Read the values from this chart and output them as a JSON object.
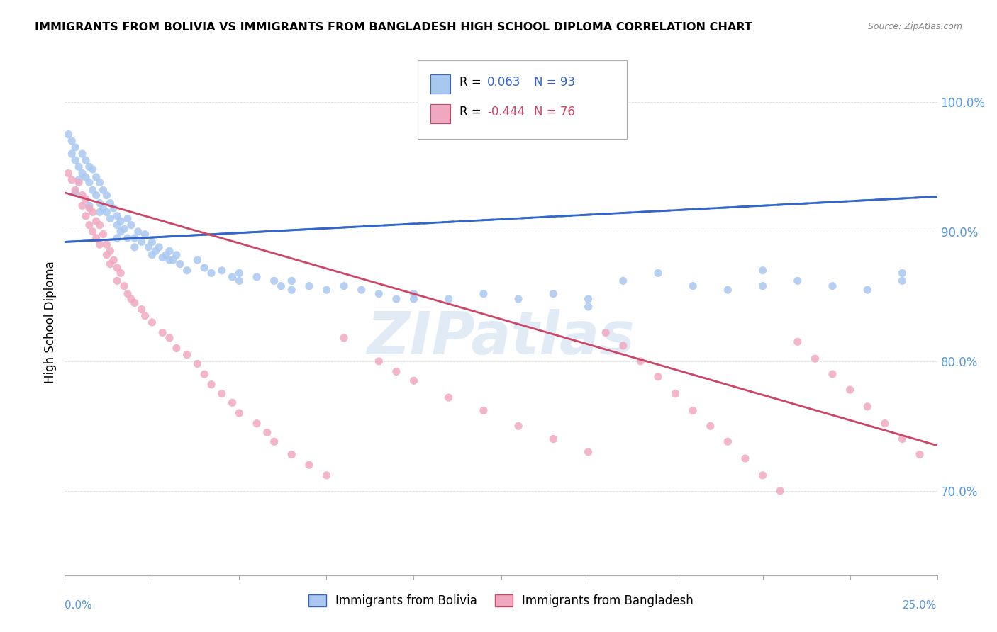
{
  "title": "IMMIGRANTS FROM BOLIVIA VS IMMIGRANTS FROM BANGLADESH HIGH SCHOOL DIPLOMA CORRELATION CHART",
  "source": "Source: ZipAtlas.com",
  "ylabel": "High School Diploma",
  "xmin": 0.0,
  "xmax": 0.25,
  "ymin": 0.635,
  "ymax": 1.025,
  "yticks": [
    0.7,
    0.8,
    0.9,
    1.0
  ],
  "ytick_labels": [
    "70.0%",
    "80.0%",
    "90.0%",
    "100.0%"
  ],
  "bolivia_color": "#a8c8f0",
  "bangladesh_color": "#f0a8c0",
  "bolivia_line_color": "#3366cc",
  "bangladesh_line_color": "#cc4466",
  "bolivia_R": 0.063,
  "bolivia_N": 93,
  "bangladesh_R": -0.444,
  "bangladesh_N": 76,
  "bolivia_label": "Immigrants from Bolivia",
  "bangladesh_label": "Immigrants from Bangladesh",
  "watermark": "ZIPatlas",
  "bolivia_scatter_x": [
    0.001,
    0.002,
    0.002,
    0.003,
    0.003,
    0.004,
    0.004,
    0.005,
    0.005,
    0.006,
    0.006,
    0.007,
    0.007,
    0.008,
    0.008,
    0.009,
    0.009,
    0.01,
    0.01,
    0.011,
    0.011,
    0.012,
    0.012,
    0.013,
    0.013,
    0.014,
    0.015,
    0.015,
    0.016,
    0.016,
    0.017,
    0.018,
    0.018,
    0.019,
    0.02,
    0.021,
    0.022,
    0.023,
    0.024,
    0.025,
    0.026,
    0.027,
    0.028,
    0.029,
    0.03,
    0.031,
    0.032,
    0.033,
    0.035,
    0.038,
    0.04,
    0.042,
    0.045,
    0.048,
    0.05,
    0.055,
    0.06,
    0.062,
    0.065,
    0.07,
    0.075,
    0.08,
    0.085,
    0.09,
    0.095,
    0.1,
    0.11,
    0.12,
    0.13,
    0.14,
    0.15,
    0.16,
    0.17,
    0.18,
    0.19,
    0.2,
    0.21,
    0.22,
    0.23,
    0.24,
    0.003,
    0.007,
    0.01,
    0.015,
    0.02,
    0.025,
    0.03,
    0.05,
    0.065,
    0.1,
    0.15,
    0.2,
    0.24
  ],
  "bolivia_scatter_y": [
    0.975,
    0.97,
    0.96,
    0.965,
    0.955,
    0.95,
    0.94,
    0.96,
    0.945,
    0.955,
    0.942,
    0.95,
    0.938,
    0.948,
    0.932,
    0.942,
    0.928,
    0.938,
    0.922,
    0.932,
    0.918,
    0.928,
    0.915,
    0.922,
    0.91,
    0.918,
    0.912,
    0.905,
    0.908,
    0.9,
    0.902,
    0.91,
    0.895,
    0.905,
    0.895,
    0.9,
    0.892,
    0.898,
    0.888,
    0.892,
    0.885,
    0.888,
    0.88,
    0.882,
    0.885,
    0.878,
    0.882,
    0.875,
    0.87,
    0.878,
    0.872,
    0.868,
    0.87,
    0.865,
    0.868,
    0.865,
    0.862,
    0.858,
    0.862,
    0.858,
    0.855,
    0.858,
    0.855,
    0.852,
    0.848,
    0.852,
    0.848,
    0.852,
    0.848,
    0.852,
    0.848,
    0.862,
    0.868,
    0.858,
    0.855,
    0.87,
    0.862,
    0.858,
    0.855,
    0.868,
    0.93,
    0.92,
    0.915,
    0.895,
    0.888,
    0.882,
    0.878,
    0.862,
    0.855,
    0.848,
    0.842,
    0.858,
    0.862
  ],
  "bangladesh_scatter_x": [
    0.001,
    0.002,
    0.003,
    0.004,
    0.005,
    0.005,
    0.006,
    0.006,
    0.007,
    0.007,
    0.008,
    0.008,
    0.009,
    0.009,
    0.01,
    0.01,
    0.011,
    0.012,
    0.012,
    0.013,
    0.013,
    0.014,
    0.015,
    0.015,
    0.016,
    0.017,
    0.018,
    0.019,
    0.02,
    0.022,
    0.023,
    0.025,
    0.028,
    0.03,
    0.032,
    0.035,
    0.038,
    0.04,
    0.042,
    0.045,
    0.048,
    0.05,
    0.055,
    0.058,
    0.06,
    0.065,
    0.07,
    0.075,
    0.08,
    0.09,
    0.095,
    0.1,
    0.11,
    0.12,
    0.13,
    0.14,
    0.15,
    0.155,
    0.16,
    0.165,
    0.17,
    0.175,
    0.18,
    0.185,
    0.19,
    0.195,
    0.2,
    0.205,
    0.21,
    0.215,
    0.22,
    0.225,
    0.23,
    0.235,
    0.24,
    0.245
  ],
  "bangladesh_scatter_y": [
    0.945,
    0.94,
    0.932,
    0.938,
    0.928,
    0.92,
    0.925,
    0.912,
    0.918,
    0.905,
    0.915,
    0.9,
    0.908,
    0.895,
    0.905,
    0.89,
    0.898,
    0.89,
    0.882,
    0.885,
    0.875,
    0.878,
    0.872,
    0.862,
    0.868,
    0.858,
    0.852,
    0.848,
    0.845,
    0.84,
    0.835,
    0.83,
    0.822,
    0.818,
    0.81,
    0.805,
    0.798,
    0.79,
    0.782,
    0.775,
    0.768,
    0.76,
    0.752,
    0.745,
    0.738,
    0.728,
    0.72,
    0.712,
    0.818,
    0.8,
    0.792,
    0.785,
    0.772,
    0.762,
    0.75,
    0.74,
    0.73,
    0.822,
    0.812,
    0.8,
    0.788,
    0.775,
    0.762,
    0.75,
    0.738,
    0.725,
    0.712,
    0.7,
    0.815,
    0.802,
    0.79,
    0.778,
    0.765,
    0.752,
    0.74,
    0.728
  ]
}
